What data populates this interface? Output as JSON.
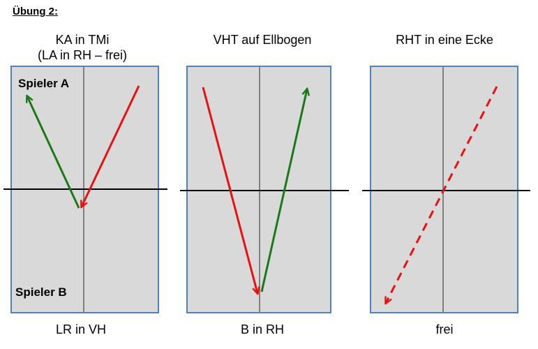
{
  "heading": "Übung 2:",
  "diagrams": [
    {
      "title_line1": "KA in TMi",
      "title_line2": "(LA in RH – frei)",
      "caption": "LR in VH",
      "player_a": "Spieler A",
      "player_b": "Spieler B"
    },
    {
      "title_line1": "VHT auf Ellbogen",
      "caption": "B in RH"
    },
    {
      "title_line1": "RHT in eine Ecke",
      "caption": "frei"
    }
  ],
  "colors": {
    "table_fill": "#d9d9d9",
    "table_border": "#4f81bd",
    "center_line": "#808080",
    "net": "#000000",
    "red_arrow": "#e81010",
    "green_arrow": "#1a7a1a"
  }
}
